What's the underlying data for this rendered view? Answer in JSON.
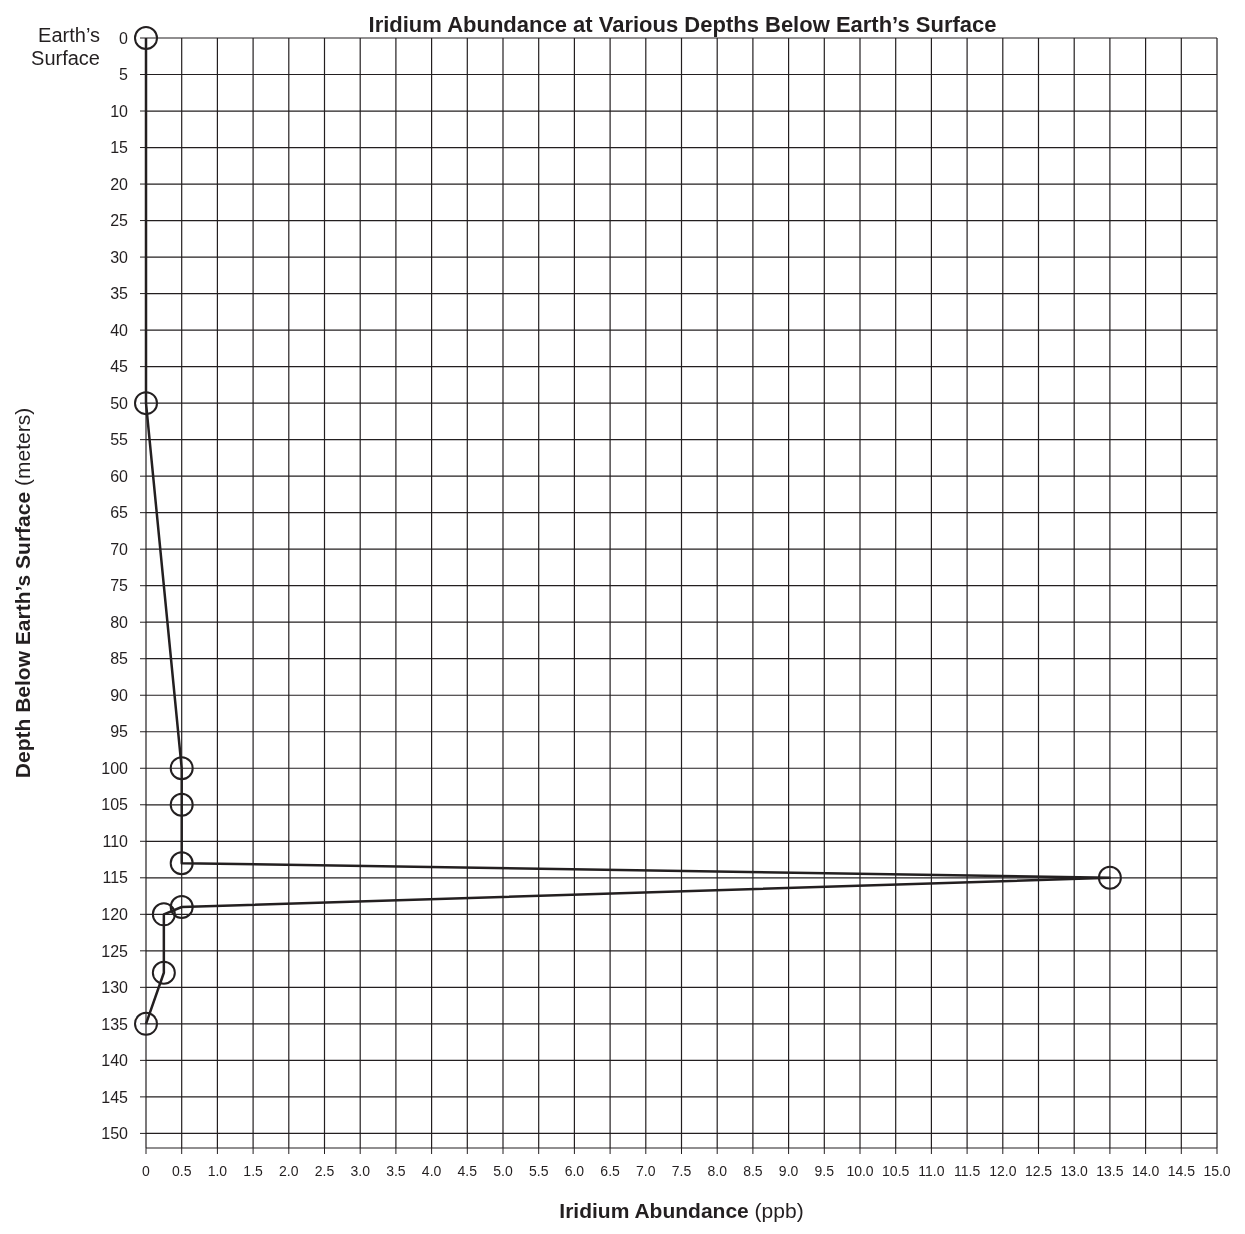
{
  "chart_data": {
    "type": "line",
    "title": "Iridium Abundance at Various Depths Below Earth’s Surface",
    "xlabel": "Iridium Abundance (ppb)",
    "ylabel": "Depth Below Earth’s Surface (meters)",
    "annotations": [
      "Earth’s Surface"
    ],
    "x": [
      0,
      0,
      0.5,
      0.5,
      0.5,
      13.5,
      0.5,
      0.25,
      0.25,
      0
    ],
    "values": [
      0,
      50,
      100,
      105,
      113,
      115,
      119,
      120,
      128,
      135
    ],
    "color": "#231f20",
    "marker": "circle",
    "line_style": "solid",
    "grid": true,
    "xlim": [
      0,
      15
    ],
    "xticks": [
      0,
      0.5,
      {
        "value": 1,
        "label": "1.0"
      },
      1.5,
      {
        "value": 2,
        "label": "2.0"
      },
      2.5,
      {
        "value": 3,
        "label": "3.0"
      },
      3.5,
      {
        "value": 4,
        "label": "4.0"
      },
      4.5,
      {
        "value": 5,
        "label": "5.0"
      },
      5.5,
      {
        "value": 6,
        "label": "6.0"
      },
      6.5,
      {
        "value": 7,
        "label": "7.0"
      },
      7.5,
      {
        "value": 8,
        "label": "8.0"
      },
      8.5,
      {
        "value": 9,
        "label": "9.0"
      },
      9.5,
      {
        "value": 10,
        "label": "10.0"
      },
      10.5,
      {
        "value": 11,
        "label": "11.0"
      },
      11.5,
      {
        "value": 12,
        "label": "12.0"
      },
      12.5,
      {
        "value": 13,
        "label": "13.0"
      },
      13.5,
      {
        "value": 14,
        "label": "14.0"
      },
      14.5,
      {
        "value": 15,
        "label": "15.0"
      }
    ],
    "ylim": [
      152,
      0
    ],
    "yticks": [
      0,
      5,
      10,
      15,
      20,
      25,
      30,
      35,
      40,
      45,
      50,
      55,
      60,
      65,
      70,
      75,
      80,
      85,
      90,
      95,
      100,
      105,
      110,
      115,
      120,
      125,
      130,
      135,
      140,
      145,
      150
    ]
  }
}
